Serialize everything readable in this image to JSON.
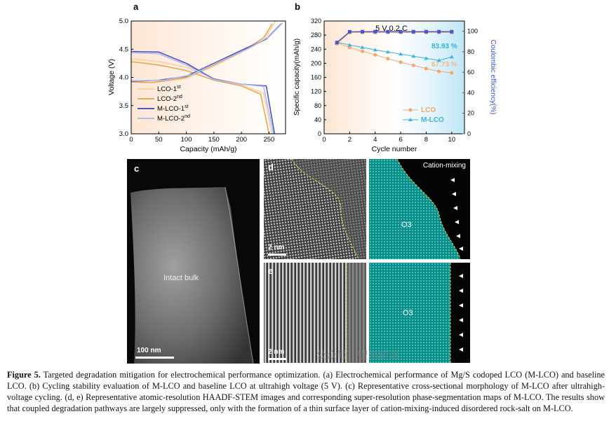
{
  "chart_data": [
    {
      "type": "line",
      "panel_label": "a",
      "xlabel": "Capacity (mAh/g)",
      "ylabel": "Voltage (V)",
      "xlim": [
        0,
        280
      ],
      "ylim": [
        3.0,
        5.0
      ],
      "xticks": [
        "0",
        "50",
        "100",
        "150",
        "200",
        "250"
      ],
      "yticks": [
        "3.0",
        "3.5",
        "4.0",
        "4.5",
        "5.0"
      ],
      "legend_position": "center-left",
      "series": [
        {
          "name": "LCO-1st",
          "color": "#f6d3a6",
          "charge": [
            [
              0,
              3.95
            ],
            [
              20,
              3.9
            ],
            [
              60,
              3.93
            ],
            [
              100,
              3.98
            ],
            [
              150,
              4.2
            ],
            [
              200,
              4.45
            ],
            [
              240,
              4.65
            ],
            [
              262,
              5.0
            ]
          ],
          "discharge": [
            [
              0,
              4.33
            ],
            [
              50,
              4.28
            ],
            [
              100,
              4.18
            ],
            [
              150,
              3.98
            ],
            [
              200,
              3.87
            ],
            [
              240,
              3.72
            ],
            [
              255,
              3.0
            ]
          ]
        },
        {
          "name": "LCO-2nd",
          "color": "#eaa84f",
          "charge": [
            [
              0,
              3.92
            ],
            [
              40,
              3.91
            ],
            [
              100,
              4.0
            ],
            [
              150,
              4.22
            ],
            [
              200,
              4.45
            ],
            [
              240,
              4.7
            ],
            [
              256,
              4.95
            ]
          ],
          "discharge": [
            [
              0,
              4.28
            ],
            [
              50,
              4.22
            ],
            [
              100,
              4.12
            ],
            [
              150,
              3.95
            ],
            [
              200,
              3.85
            ],
            [
              235,
              3.7
            ],
            [
              250,
              3.0
            ]
          ]
        },
        {
          "name": "M-LCO-1st",
          "color": "#4a55c8",
          "charge": [
            [
              0,
              3.93
            ],
            [
              50,
              3.95
            ],
            [
              100,
              4.02
            ],
            [
              150,
              4.25
            ],
            [
              200,
              4.48
            ],
            [
              245,
              4.68
            ],
            [
              272,
              4.95
            ]
          ],
          "discharge": [
            [
              0,
              4.46
            ],
            [
              50,
              4.45
            ],
            [
              100,
              4.25
            ],
            [
              150,
              3.97
            ],
            [
              200,
              3.88
            ],
            [
              245,
              3.85
            ],
            [
              260,
              3.0
            ]
          ]
        },
        {
          "name": "M-LCO-2nd",
          "color": "#b2bbee",
          "charge": [
            [
              0,
              3.94
            ],
            [
              60,
              3.95
            ],
            [
              110,
              4.05
            ],
            [
              160,
              4.28
            ],
            [
              210,
              4.5
            ],
            [
              250,
              4.72
            ],
            [
              275,
              4.97
            ]
          ],
          "discharge": [
            [
              0,
              4.44
            ],
            [
              50,
              4.42
            ],
            [
              100,
              4.22
            ],
            [
              150,
              3.96
            ],
            [
              200,
              3.88
            ],
            [
              240,
              3.84
            ],
            [
              258,
              3.0
            ]
          ]
        }
      ],
      "legend": [
        "LCO-1",
        "LCO-2",
        "M-LCO-1",
        "M-LCO-2"
      ],
      "legend_sup": [
        "st",
        "nd",
        "st",
        "nd"
      ]
    },
    {
      "type": "line",
      "panel_label": "b",
      "title": "5 V  0.2 C",
      "xlabel": "Cycle number",
      "ylabel": "Specific capacity(mAh/g)",
      "y2label": "Coulombic efficiency(%)",
      "xlim": [
        0,
        11
      ],
      "ylim": [
        0,
        320
      ],
      "y2lim": [
        0,
        110
      ],
      "xticks": [
        "0",
        "2",
        "4",
        "6",
        "8",
        "10"
      ],
      "yticks": [
        "0",
        "40",
        "80",
        "120",
        "160",
        "200",
        "240",
        "280",
        "320"
      ],
      "y2ticks": [
        "0",
        "20",
        "40",
        "60",
        "80",
        "100"
      ],
      "legend_position": "bottom-right",
      "x": [
        1,
        2,
        3,
        4,
        5,
        6,
        7,
        8,
        9,
        10
      ],
      "series": [
        {
          "name": "LCO",
          "color": "#f0a86a",
          "axis": "left",
          "values": [
            258,
            245,
            234,
            224,
            213,
            203,
            194,
            185,
            177,
            173
          ]
        },
        {
          "name": "M-LCO",
          "color": "#38b5dc",
          "axis": "left",
          "values": [
            260,
            252,
            245,
            238,
            232,
            226,
            220,
            214,
            208,
            218
          ]
        },
        {
          "name": "",
          "color": "#f0a86a",
          "axis": "right",
          "values": [
            88,
            99,
            99,
            99,
            99,
            99,
            99,
            99,
            99,
            99
          ]
        },
        {
          "name": "",
          "color": "#4a55c8",
          "axis": "right",
          "values": [
            89,
            99.5,
            99.6,
            99.6,
            99.6,
            99.6,
            99.6,
            99.6,
            99.6,
            99.6
          ]
        }
      ],
      "annotations": [
        "83.93 %",
        "67.73 %"
      ]
    }
  ],
  "images": {
    "c": {
      "label": "c",
      "scalebar": "100 nm",
      "text": "Intact bulk"
    },
    "d": {
      "label": "d",
      "scalebar": "2 nm"
    },
    "d_map": {
      "header": "Cation-mixing",
      "phase": "O3"
    },
    "e": {
      "label": "e",
      "scalebar": "2 nm"
    },
    "e_map": {
      "phase": "O3"
    }
  },
  "watermark": "公众号 · 锂电前沿",
  "caption": {
    "lead": "Figure 5.",
    "body": " Targeted degradation mitigation for electrochemical performance optimization. (a) Electrochemical performance of Mg/S codoped LCO (M-LCO) and baseline LCO. (b) Cycling stability evaluation of M-LCO and baseline LCO at ultrahigh voltage (5 V). (c) Representative cross-sectional morphology of M-LCO after ultrahigh-voltage cycling. (d, e) Representative atomic-resolution HAADF-STEM images and corresponding super-resolution phase-segmentation maps of M-LCO. The results show that coupled degradation pathways are largely suppressed, only with the formation of a thin surface layer of cation-mixing-induced disordered rock-salt on M-LCO."
  }
}
